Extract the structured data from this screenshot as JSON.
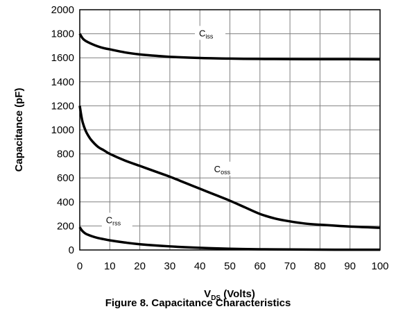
{
  "chart_data": {
    "type": "line",
    "title": "Figure 8. Capacitance Characteristics",
    "xlabel": {
      "main": "V",
      "sub": "DS",
      "rest": " (Volts)"
    },
    "ylabel": "Capacitance (pF)",
    "xlim": [
      0,
      100
    ],
    "ylim": [
      0,
      2000
    ],
    "xticks": [
      0,
      10,
      20,
      30,
      40,
      50,
      60,
      70,
      80,
      90,
      100
    ],
    "yticks": [
      0,
      200,
      400,
      600,
      800,
      1000,
      1200,
      1400,
      1600,
      1800,
      2000
    ],
    "grid": true,
    "legend": "none",
    "series": [
      {
        "name": "iss",
        "label_main": "C",
        "label_sub": "iss",
        "x": [
          0,
          1,
          2,
          4,
          6,
          8,
          10,
          15,
          20,
          25,
          30,
          40,
          50,
          60,
          70,
          80,
          90,
          100
        ],
        "y": [
          1800,
          1760,
          1740,
          1715,
          1695,
          1680,
          1670,
          1645,
          1628,
          1617,
          1608,
          1598,
          1593,
          1590,
          1589,
          1588,
          1588,
          1587
        ]
      },
      {
        "name": "oss",
        "label_main": "C",
        "label_sub": "oss",
        "x": [
          0,
          0.5,
          1,
          2,
          3,
          4,
          6,
          8,
          10,
          15,
          20,
          25,
          30,
          35,
          40,
          45,
          50,
          55,
          60,
          65,
          70,
          75,
          80,
          90,
          100
        ],
        "y": [
          1200,
          1120,
          1060,
          990,
          945,
          910,
          860,
          830,
          800,
          745,
          700,
          655,
          610,
          560,
          510,
          460,
          410,
          355,
          300,
          262,
          238,
          220,
          210,
          195,
          185
        ]
      },
      {
        "name": "rss",
        "label_main": "C",
        "label_sub": "rss",
        "x": [
          0,
          0.5,
          1,
          2,
          4,
          6,
          8,
          10,
          15,
          20,
          30,
          40,
          50,
          60,
          70,
          80,
          90,
          100
        ],
        "y": [
          190,
          170,
          155,
          135,
          115,
          100,
          90,
          80,
          62,
          48,
          30,
          18,
          10,
          6,
          4,
          3,
          2,
          2
        ]
      }
    ]
  }
}
